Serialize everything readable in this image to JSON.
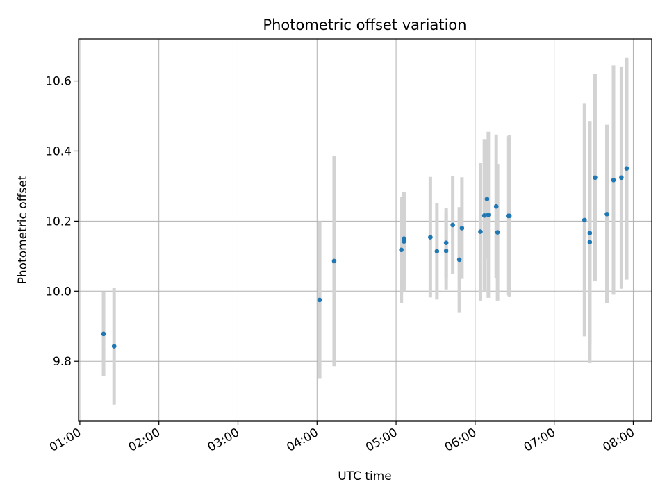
{
  "chart_data": {
    "type": "scatter",
    "title": "Photometric offset variation",
    "xlabel": "UTC time",
    "ylabel": "Photometric offset",
    "x_unit": "UTC hours",
    "xlim": [
      "00:59",
      "08:14"
    ],
    "ylim": [
      9.63,
      10.72
    ],
    "x_ticks": [
      "01:00",
      "02:00",
      "03:00",
      "04:00",
      "05:00",
      "06:00",
      "07:00",
      "08:00"
    ],
    "y_ticks": [
      "9.8",
      "10.0",
      "10.2",
      "10.4",
      "10.6"
    ],
    "y_tick_values": [
      9.8,
      10.0,
      10.2,
      10.4,
      10.6
    ],
    "grid": true,
    "legend": "none",
    "marker_color": "#1f77b4",
    "errorbar_color": "#d3d3d3",
    "points": [
      {
        "x": "01:18",
        "y": 9.878,
        "err": 0.12
      },
      {
        "x": "01:26",
        "y": 9.843,
        "err": 0.167
      },
      {
        "x": "04:02",
        "y": 9.975,
        "err": 0.225
      },
      {
        "x": "04:13",
        "y": 10.086,
        "err": 0.3
      },
      {
        "x": "05:04",
        "y": 10.118,
        "err": 0.152
      },
      {
        "x": "05:06",
        "y": 10.15,
        "err": 0.12
      },
      {
        "x": "05:06",
        "y": 10.142,
        "err": 0.142
      },
      {
        "x": "05:26",
        "y": 10.154,
        "err": 0.172
      },
      {
        "x": "05:31",
        "y": 10.114,
        "err": 0.138
      },
      {
        "x": "05:38",
        "y": 10.115,
        "err": 0.11
      },
      {
        "x": "05:38",
        "y": 10.138,
        "err": 0.1
      },
      {
        "x": "05:43",
        "y": 10.189,
        "err": 0.14
      },
      {
        "x": "05:48",
        "y": 10.09,
        "err": 0.15
      },
      {
        "x": "05:50",
        "y": 10.18,
        "err": 0.145
      },
      {
        "x": "06:04",
        "y": 10.17,
        "err": 0.197
      },
      {
        "x": "06:07",
        "y": 10.216,
        "err": 0.218
      },
      {
        "x": "06:09",
        "y": 10.263,
        "err": 0.17
      },
      {
        "x": "06:10",
        "y": 10.218,
        "err": 0.237
      },
      {
        "x": "06:16",
        "y": 10.242,
        "err": 0.205
      },
      {
        "x": "06:17",
        "y": 10.168,
        "err": 0.195
      },
      {
        "x": "06:25",
        "y": 10.215,
        "err": 0.227
      },
      {
        "x": "06:26",
        "y": 10.215,
        "err": 0.23
      },
      {
        "x": "07:23",
        "y": 10.203,
        "err": 0.332
      },
      {
        "x": "07:27",
        "y": 10.166,
        "err": 0.32
      },
      {
        "x": "07:27",
        "y": 10.14,
        "err": 0.345
      },
      {
        "x": "07:31",
        "y": 10.324,
        "err": 0.295
      },
      {
        "x": "07:40",
        "y": 10.22,
        "err": 0.255
      },
      {
        "x": "07:45",
        "y": 10.317,
        "err": 0.327
      },
      {
        "x": "07:51",
        "y": 10.324,
        "err": 0.317
      },
      {
        "x": "07:55",
        "y": 10.35,
        "err": 0.317
      }
    ]
  }
}
